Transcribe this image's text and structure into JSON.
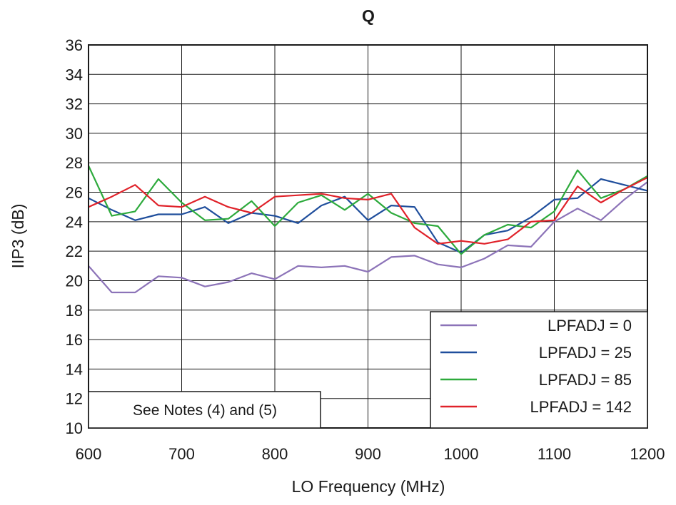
{
  "chart_data": {
    "type": "line",
    "title": "Q",
    "xlabel": "LO Frequency (MHz)",
    "ylabel": "IIP3 (dB)",
    "xlim": [
      600,
      1200
    ],
    "ylim": [
      10,
      36
    ],
    "xticks": [
      600,
      700,
      800,
      900,
      1000,
      1100,
      1200
    ],
    "yticks": [
      10,
      12,
      14,
      16,
      18,
      20,
      22,
      24,
      26,
      28,
      30,
      32,
      34,
      36
    ],
    "grid": true,
    "legend_position": "bottom-right",
    "annotation": "See Notes (4) and (5)",
    "x": [
      600,
      625,
      650,
      675,
      700,
      725,
      750,
      775,
      800,
      825,
      850,
      875,
      900,
      925,
      950,
      975,
      1000,
      1025,
      1050,
      1075,
      1100,
      1125,
      1150,
      1175,
      1200
    ],
    "series": [
      {
        "name": "LPFADJ = 0",
        "color": "#8C73B8",
        "values": [
          21.0,
          19.2,
          19.2,
          20.3,
          20.2,
          19.6,
          19.9,
          20.5,
          20.1,
          21.0,
          20.9,
          21.0,
          20.6,
          21.6,
          21.7,
          21.1,
          20.9,
          21.5,
          22.4,
          22.3,
          24.0,
          24.9,
          24.1,
          25.5,
          26.7
        ]
      },
      {
        "name": "LPFADJ = 25",
        "color": "#1F4E9C",
        "values": [
          25.6,
          24.8,
          24.1,
          24.5,
          24.5,
          25.0,
          23.9,
          24.6,
          24.4,
          23.9,
          25.1,
          25.7,
          24.1,
          25.1,
          25.0,
          22.6,
          21.9,
          23.1,
          23.4,
          24.3,
          25.5,
          25.6,
          26.9,
          26.5,
          26.1
        ]
      },
      {
        "name": "LPFADJ = 85",
        "color": "#2DAA3C",
        "values": [
          27.8,
          24.4,
          24.7,
          26.9,
          25.3,
          24.1,
          24.2,
          25.4,
          23.7,
          25.3,
          25.8,
          24.8,
          25.9,
          24.6,
          23.9,
          23.7,
          21.8,
          23.1,
          23.8,
          23.6,
          24.7,
          27.5,
          25.6,
          26.2,
          27.1
        ]
      },
      {
        "name": "LPFADJ = 142",
        "color": "#E0222A",
        "values": [
          25.0,
          25.7,
          26.5,
          25.1,
          25.0,
          25.7,
          25.0,
          24.6,
          25.7,
          25.8,
          25.9,
          25.6,
          25.5,
          25.9,
          23.6,
          22.5,
          22.7,
          22.5,
          22.8,
          24.0,
          24.1,
          26.4,
          25.3,
          26.2,
          27.0
        ]
      }
    ]
  }
}
